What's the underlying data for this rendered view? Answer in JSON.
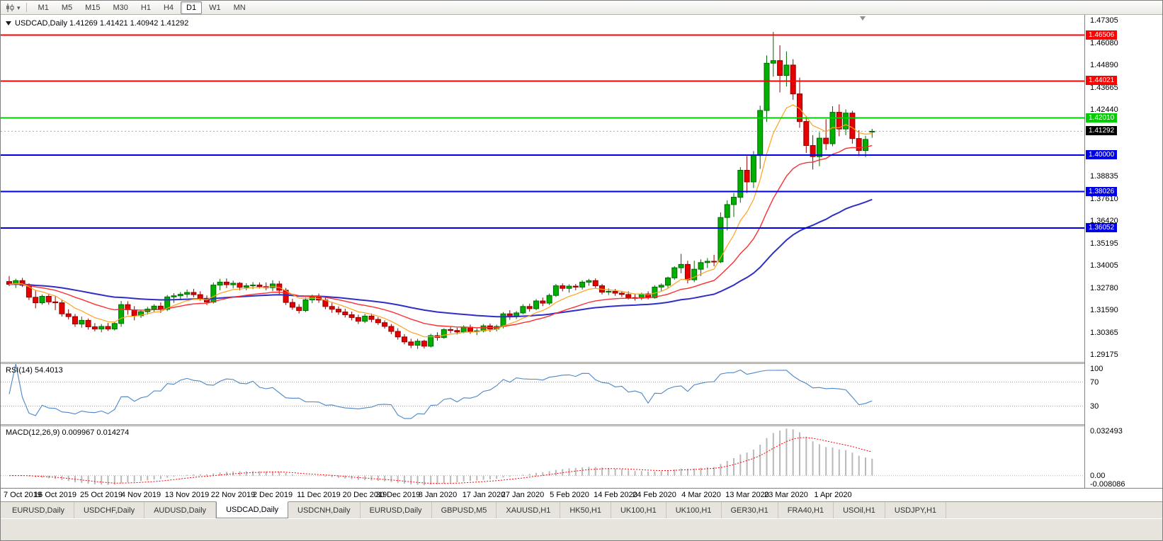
{
  "toolbar": {
    "chart_type_icon": "candlestick-chart-icon",
    "timeframes": [
      "M1",
      "M5",
      "M15",
      "M30",
      "H1",
      "H4",
      "D1",
      "W1",
      "MN"
    ],
    "active_timeframe": "D1"
  },
  "window": {
    "title": "USDCAD,Daily 1.41269 1.41421 1.40942 1.41292",
    "symbol": "USDCAD",
    "period": "Daily",
    "ohlc": {
      "open": "1.41269",
      "high": "1.41421",
      "low": "1.40942",
      "close": "1.41292"
    }
  },
  "panes": {
    "rsi_label": "RSI(14) 54.4013",
    "macd_label": "MACD(12,26,9) 0.009967 0.014274"
  },
  "price_axis": {
    "ticks": [
      1.47305,
      1.4608,
      1.4489,
      1.43665,
      1.4244,
      1.38835,
      1.3761,
      1.3642,
      1.35195,
      1.34005,
      1.3278,
      1.3159,
      1.30365,
      1.29175
    ],
    "current": {
      "price": 1.41292,
      "label": "1.41292",
      "bg": "#000000",
      "fg": "#FFFFFF"
    }
  },
  "levels": [
    {
      "price": 1.46506,
      "label": "1.46506",
      "color": "#FF0000"
    },
    {
      "price": 1.44021,
      "label": "1.44021",
      "color": "#FF0000"
    },
    {
      "price": 1.4201,
      "label": "1.42010",
      "color": "#00CE00"
    },
    {
      "price": 1.4,
      "label": "1.40000",
      "color": "#0000E6"
    },
    {
      "price": 1.38026,
      "label": "1.38026",
      "color": "#0000E6"
    },
    {
      "price": 1.36052,
      "label": "1.36052",
      "color": "#0000E6"
    }
  ],
  "rsi_axis": {
    "levels": [
      100,
      70,
      30
    ]
  },
  "macd_axis": {
    "max": 0.032493,
    "min": -0.008086,
    "labels": [
      "0.032493",
      "0.00",
      "-0.008086"
    ]
  },
  "date_axis": [
    {
      "text": "7 Oct 2019",
      "i": 0
    },
    {
      "text": "16 Oct 2019",
      "i": 7
    },
    {
      "text": "25 Oct 2019",
      "i": 14
    },
    {
      "text": "4 Nov 2019",
      "i": 20
    },
    {
      "text": "13 Nov 2019",
      "i": 27
    },
    {
      "text": "22 Nov 2019",
      "i": 34
    },
    {
      "text": "2 Dec 2019",
      "i": 40
    },
    {
      "text": "11 Dec 2019",
      "i": 47
    },
    {
      "text": "20 Dec 2019",
      "i": 54
    },
    {
      "text": "30 Dec 2019",
      "i": 59
    },
    {
      "text": "8 Jan 2020",
      "i": 65
    },
    {
      "text": "17 Jan 2020",
      "i": 72
    },
    {
      "text": "27 Jan 2020",
      "i": 78
    },
    {
      "text": "5 Feb 2020",
      "i": 85
    },
    {
      "text": "14 Feb 2020",
      "i": 92
    },
    {
      "text": "24 Feb 2020",
      "i": 98
    },
    {
      "text": "4 Mar 2020",
      "i": 105
    },
    {
      "text": "13 Mar 2020",
      "i": 112
    },
    {
      "text": "23 Mar 2020",
      "i": 118
    },
    {
      "text": "1 Apr 2020",
      "i": 125
    }
  ],
  "tabs": {
    "items": [
      "EURUSD,Daily",
      "USDCHF,Daily",
      "AUDUSD,Daily",
      "USDCAD,Daily",
      "USDCNH,Daily",
      "EURUSD,Daily",
      "GBPUSD,M5",
      "XAUUSD,H1",
      "HK50,H1",
      "UK100,H1",
      "UK100,H1",
      "GER30,H1",
      "FRA40,H1",
      "USOil,H1",
      "USDJPY,H1"
    ],
    "active_index": 3
  },
  "chart_data": {
    "type": "candlestick",
    "symbol": "USDCAD",
    "timeframe": "Daily",
    "price_range": [
      1.288,
      1.476
    ],
    "indicators": {
      "ma_fast_period": 8,
      "ma_mid_period": 21,
      "ma_slow_period": 55,
      "rsi_period": 14,
      "rsi_value": 54.4013,
      "macd_params": [
        12,
        26,
        9
      ],
      "macd_value": 0.009967,
      "macd_signal_value": 0.014274
    },
    "colors": {
      "up": "#00B000",
      "up_border": "#006A00",
      "down": "#E60000",
      "down_border": "#8E0000",
      "ma_fast": "#FFA21F",
      "ma_mid": "#FF2E2E",
      "ma_slow": "#2F2FC8",
      "rsi": "#4A86C8",
      "macd_hist": "#B9B9B9",
      "macd_signal": "#FF0000"
    },
    "candles": [
      [
        1.3315,
        1.3345,
        1.329,
        1.33
      ],
      [
        1.33,
        1.333,
        1.328,
        1.332
      ],
      [
        1.332,
        1.3335,
        1.3285,
        1.3295
      ],
      [
        1.3295,
        1.3305,
        1.3215,
        1.323
      ],
      [
        1.323,
        1.327,
        1.317,
        1.32
      ],
      [
        1.32,
        1.3245,
        1.319,
        1.3235
      ],
      [
        1.3235,
        1.325,
        1.319,
        1.3205
      ],
      [
        1.3205,
        1.3235,
        1.316,
        1.32
      ],
      [
        1.32,
        1.3215,
        1.3125,
        1.314
      ],
      [
        1.314,
        1.3165,
        1.311,
        1.3125
      ],
      [
        1.3125,
        1.314,
        1.307,
        1.3085
      ],
      [
        1.3085,
        1.3125,
        1.3065,
        1.3105
      ],
      [
        1.3105,
        1.3115,
        1.3055,
        1.307
      ],
      [
        1.307,
        1.309,
        1.3045,
        1.3058
      ],
      [
        1.3058,
        1.3085,
        1.304,
        1.3072
      ],
      [
        1.3072,
        1.309,
        1.3048,
        1.3058
      ],
      [
        1.3058,
        1.3098,
        1.305,
        1.3088
      ],
      [
        1.3088,
        1.321,
        1.307,
        1.319
      ],
      [
        1.319,
        1.3208,
        1.3135,
        1.3162
      ],
      [
        1.3162,
        1.3182,
        1.3105,
        1.313
      ],
      [
        1.313,
        1.3162,
        1.3118,
        1.3152
      ],
      [
        1.3152,
        1.3178,
        1.3136,
        1.3166
      ],
      [
        1.3166,
        1.3192,
        1.315,
        1.3182
      ],
      [
        1.3182,
        1.3202,
        1.3145,
        1.3165
      ],
      [
        1.3165,
        1.3242,
        1.3155,
        1.3232
      ],
      [
        1.3232,
        1.3252,
        1.32,
        1.3238
      ],
      [
        1.3238,
        1.3258,
        1.3215,
        1.3246
      ],
      [
        1.3246,
        1.3272,
        1.3228,
        1.3256
      ],
      [
        1.3256,
        1.3276,
        1.323,
        1.3244
      ],
      [
        1.3244,
        1.3262,
        1.3212,
        1.3224
      ],
      [
        1.3224,
        1.324,
        1.3188,
        1.3204
      ],
      [
        1.3204,
        1.331,
        1.3196,
        1.3296
      ],
      [
        1.3296,
        1.333,
        1.3268,
        1.3312
      ],
      [
        1.3312,
        1.3332,
        1.328,
        1.3298
      ],
      [
        1.3298,
        1.332,
        1.3278,
        1.3306
      ],
      [
        1.3306,
        1.3312,
        1.3268,
        1.3284
      ],
      [
        1.3284,
        1.3306,
        1.3268,
        1.3292
      ],
      [
        1.3292,
        1.3312,
        1.3274,
        1.3296
      ],
      [
        1.3296,
        1.331,
        1.3278,
        1.3288
      ],
      [
        1.3288,
        1.331,
        1.3268,
        1.3282
      ],
      [
        1.3282,
        1.3322,
        1.3262,
        1.3302
      ],
      [
        1.3302,
        1.3318,
        1.3248,
        1.3268
      ],
      [
        1.3268,
        1.328,
        1.3188,
        1.3202
      ],
      [
        1.3202,
        1.3222,
        1.3162,
        1.3176
      ],
      [
        1.3176,
        1.3192,
        1.3142,
        1.3158
      ],
      [
        1.3158,
        1.3228,
        1.315,
        1.3216
      ],
      [
        1.3216,
        1.3244,
        1.3198,
        1.3232
      ],
      [
        1.3232,
        1.325,
        1.32,
        1.3215
      ],
      [
        1.3215,
        1.3232,
        1.3165,
        1.318
      ],
      [
        1.318,
        1.32,
        1.3145,
        1.3165
      ],
      [
        1.3165,
        1.318,
        1.3135,
        1.315
      ],
      [
        1.315,
        1.3168,
        1.312,
        1.3135
      ],
      [
        1.3135,
        1.3152,
        1.3105,
        1.312
      ],
      [
        1.312,
        1.3135,
        1.3085,
        1.31
      ],
      [
        1.31,
        1.314,
        1.309,
        1.3128
      ],
      [
        1.3128,
        1.3142,
        1.3095,
        1.311
      ],
      [
        1.311,
        1.3122,
        1.308,
        1.3092
      ],
      [
        1.3092,
        1.3105,
        1.306,
        1.3072
      ],
      [
        1.3072,
        1.3085,
        1.303,
        1.3045
      ],
      [
        1.3045,
        1.3062,
        1.3,
        1.3015
      ],
      [
        1.3015,
        1.303,
        1.2975,
        1.2988
      ],
      [
        1.2988,
        1.3005,
        1.2955,
        1.297
      ],
      [
        1.297,
        1.3005,
        1.295,
        1.2992
      ],
      [
        1.2992,
        1.3,
        1.2952,
        1.2965
      ],
      [
        1.2965,
        1.3032,
        1.2958,
        1.3022
      ],
      [
        1.3022,
        1.304,
        1.2995,
        1.3012
      ],
      [
        1.3012,
        1.3062,
        1.3005,
        1.3055
      ],
      [
        1.3055,
        1.3072,
        1.3035,
        1.305
      ],
      [
        1.305,
        1.3065,
        1.3028,
        1.3042
      ],
      [
        1.3042,
        1.3078,
        1.3035,
        1.3068
      ],
      [
        1.3068,
        1.3082,
        1.3032,
        1.3045
      ],
      [
        1.3045,
        1.3062,
        1.3025,
        1.3048
      ],
      [
        1.3048,
        1.3085,
        1.304,
        1.3075
      ],
      [
        1.3075,
        1.3088,
        1.3042,
        1.3058
      ],
      [
        1.3058,
        1.3082,
        1.3045,
        1.3072
      ],
      [
        1.3072,
        1.315,
        1.3062,
        1.314
      ],
      [
        1.314,
        1.316,
        1.3108,
        1.3126
      ],
      [
        1.3126,
        1.3155,
        1.3112,
        1.3145
      ],
      [
        1.3145,
        1.3192,
        1.3138,
        1.318
      ],
      [
        1.318,
        1.3195,
        1.3152,
        1.3168
      ],
      [
        1.3168,
        1.322,
        1.316,
        1.321
      ],
      [
        1.321,
        1.3228,
        1.3182,
        1.3198
      ],
      [
        1.3198,
        1.325,
        1.3188,
        1.324
      ],
      [
        1.324,
        1.3302,
        1.3232,
        1.3292
      ],
      [
        1.3292,
        1.3305,
        1.3262,
        1.3278
      ],
      [
        1.3278,
        1.33,
        1.3255,
        1.329
      ],
      [
        1.329,
        1.3302,
        1.3268,
        1.3285
      ],
      [
        1.3285,
        1.3322,
        1.3272,
        1.3312
      ],
      [
        1.3312,
        1.333,
        1.3292,
        1.332
      ],
      [
        1.332,
        1.3332,
        1.328,
        1.3292
      ],
      [
        1.3292,
        1.3302,
        1.3245,
        1.3258
      ],
      [
        1.3258,
        1.3278,
        1.3242,
        1.3262
      ],
      [
        1.3262,
        1.3275,
        1.3238,
        1.3252
      ],
      [
        1.3252,
        1.3265,
        1.3232,
        1.3245
      ],
      [
        1.3245,
        1.3262,
        1.3218,
        1.3228
      ],
      [
        1.3228,
        1.3248,
        1.3212,
        1.3225
      ],
      [
        1.3225,
        1.3255,
        1.3215,
        1.3248
      ],
      [
        1.3248,
        1.3262,
        1.3218,
        1.3228
      ],
      [
        1.3228,
        1.3295,
        1.3222,
        1.3285
      ],
      [
        1.3285,
        1.3305,
        1.3262,
        1.3295
      ],
      [
        1.3295,
        1.3342,
        1.3282,
        1.3335
      ],
      [
        1.3335,
        1.3398,
        1.3325,
        1.339
      ],
      [
        1.339,
        1.3465,
        1.336,
        1.3408
      ],
      [
        1.3408,
        1.3428,
        1.3305,
        1.3325
      ],
      [
        1.3325,
        1.3428,
        1.3312,
        1.3382
      ],
      [
        1.3382,
        1.3435,
        1.3345,
        1.3418
      ],
      [
        1.3418,
        1.3442,
        1.3388,
        1.3425
      ],
      [
        1.3425,
        1.346,
        1.3398,
        1.3422
      ],
      [
        1.3422,
        1.369,
        1.3415,
        1.3662
      ],
      [
        1.3662,
        1.3755,
        1.3592,
        1.3732
      ],
      [
        1.3732,
        1.3795,
        1.3665,
        1.3772
      ],
      [
        1.3772,
        1.3935,
        1.3742,
        1.3918
      ],
      [
        1.3918,
        1.3995,
        1.3795,
        1.3855
      ],
      [
        1.3855,
        1.4022,
        1.3822,
        1.3998
      ],
      [
        1.3998,
        1.4268,
        1.3925,
        1.4242
      ],
      [
        1.4242,
        1.454,
        1.418,
        1.4498
      ],
      [
        1.4498,
        1.4668,
        1.4425,
        1.4512
      ],
      [
        1.4512,
        1.4595,
        1.434,
        1.4432
      ],
      [
        1.4432,
        1.4562,
        1.4372,
        1.4488
      ],
      [
        1.4488,
        1.452,
        1.43,
        1.4332
      ],
      [
        1.4332,
        1.442,
        1.4148,
        1.4182
      ],
      [
        1.4182,
        1.4212,
        1.4012,
        1.4052
      ],
      [
        1.4052,
        1.4108,
        1.3922,
        1.3992
      ],
      [
        1.3992,
        1.4125,
        1.394,
        1.4092
      ],
      [
        1.4092,
        1.4195,
        1.4028,
        1.4062
      ],
      [
        1.4062,
        1.4265,
        1.4048,
        1.4232
      ],
      [
        1.4232,
        1.4275,
        1.4102,
        1.4142
      ],
      [
        1.4142,
        1.4248,
        1.4108,
        1.4228
      ],
      [
        1.4228,
        1.424,
        1.4062,
        1.409
      ],
      [
        1.409,
        1.4135,
        1.3995,
        1.4025
      ],
      [
        1.4025,
        1.4105,
        1.399,
        1.4085
      ],
      [
        1.41269,
        1.41421,
        1.40942,
        1.41292
      ]
    ]
  }
}
